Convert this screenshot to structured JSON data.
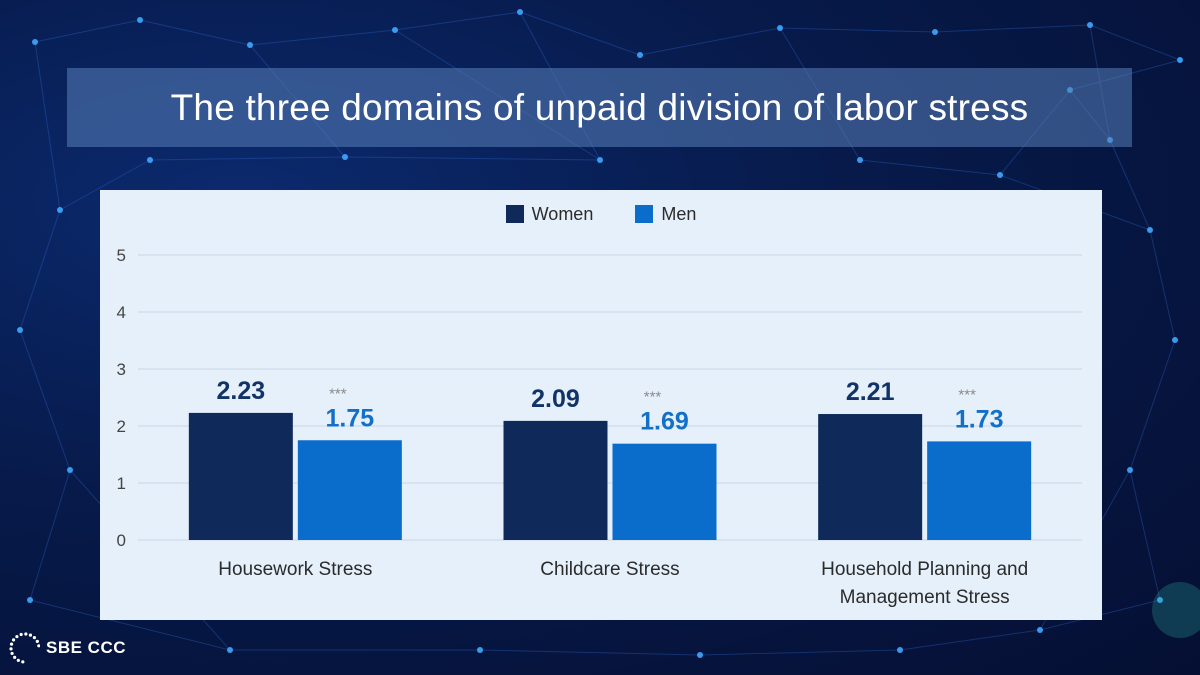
{
  "title": "The three domains of unpaid division of labor stress",
  "logo": {
    "text": "SBE CCC",
    "icon": "dotted-circle-logo-icon"
  },
  "colors": {
    "women": "#0f2a5a",
    "men": "#0a6ccb",
    "women_label": "#123366",
    "men_label": "#1270c8",
    "significance": "#8a8a8a",
    "grid": "#c9d6e6",
    "axis_text": "#444444"
  },
  "chart_data": {
    "type": "bar",
    "title": "",
    "xlabel": "",
    "ylabel": "",
    "categories": [
      "Housework Stress",
      "Childcare Stress",
      "Household Planning and Management Stress"
    ],
    "category_lines": [
      [
        "Housework Stress"
      ],
      [
        "Childcare Stress"
      ],
      [
        "Household Planning and",
        "Management Stress"
      ]
    ],
    "series": [
      {
        "name": "Women",
        "values": [
          2.23,
          2.09,
          2.21
        ],
        "labels": [
          "2.23",
          "2.09",
          "2.21"
        ]
      },
      {
        "name": "Men",
        "values": [
          1.75,
          1.69,
          1.73
        ],
        "labels": [
          "1.75",
          "1.69",
          "1.73"
        ]
      }
    ],
    "significance": [
      "***",
      "***",
      "***"
    ],
    "ylim": [
      0,
      5
    ],
    "yticks": [
      "0",
      "1",
      "2",
      "3",
      "4",
      "5"
    ],
    "grid": true,
    "legend": "top-center"
  }
}
